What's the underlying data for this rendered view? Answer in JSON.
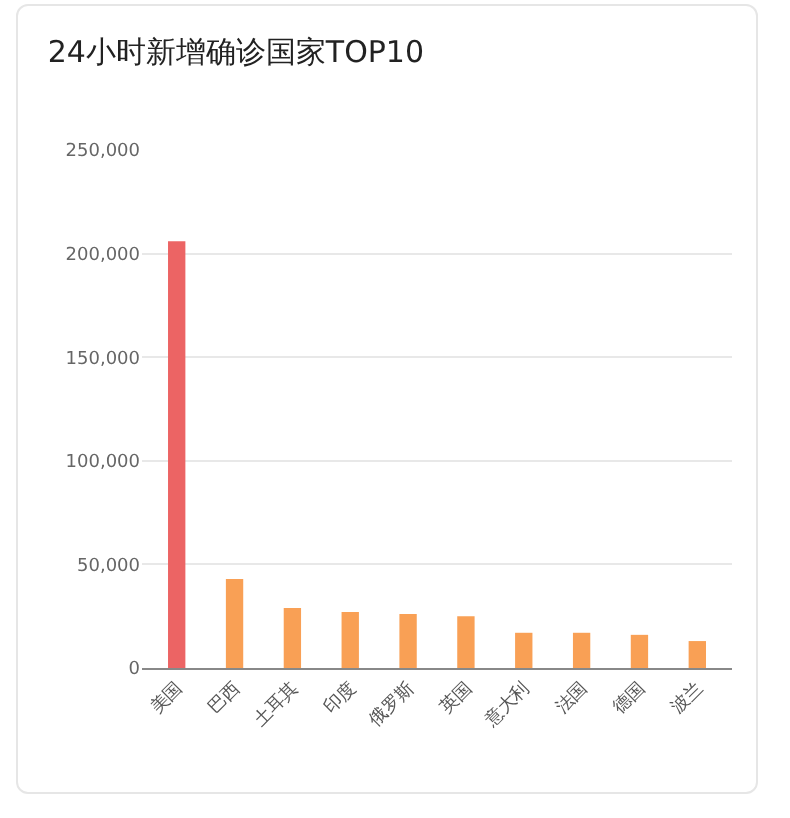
{
  "chart_data": {
    "type": "bar",
    "title": "24小时新增确诊国家TOP10",
    "categories": [
      "美国",
      "巴西",
      "土耳其",
      "印度",
      "俄罗斯",
      "英国",
      "意大利",
      "法国",
      "德国",
      "波兰"
    ],
    "values": [
      206000,
      43000,
      29000,
      27000,
      26000,
      25000,
      17000,
      17000,
      16000,
      13000
    ],
    "colors": [
      "#ec6464",
      "#f9a055",
      "#f9a055",
      "#f9a055",
      "#f9a055",
      "#f9a055",
      "#f9a055",
      "#f9a055",
      "#f9a055",
      "#f9a055"
    ],
    "ylim": [
      0,
      250000
    ],
    "yticks": [
      {
        "value": 0,
        "label": "0"
      },
      {
        "value": 50000,
        "label": "50,000"
      },
      {
        "value": 100000,
        "label": "100,000"
      },
      {
        "value": 150000,
        "label": "150,000"
      },
      {
        "value": 200000,
        "label": "200,000"
      },
      {
        "value": 250000,
        "label": "250,000"
      }
    ],
    "grid": "y"
  }
}
